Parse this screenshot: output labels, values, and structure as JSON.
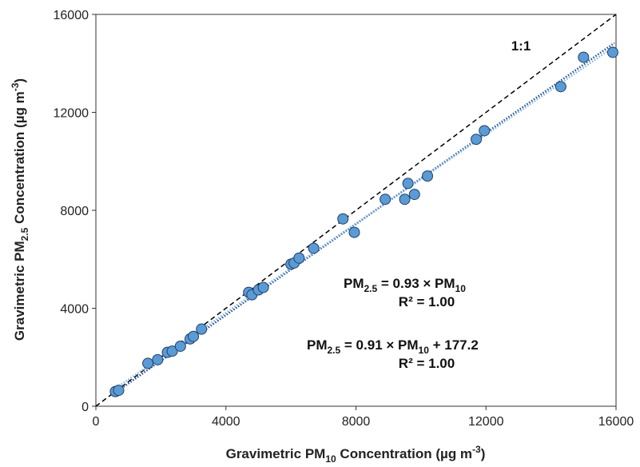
{
  "chart_data": {
    "type": "scatter",
    "xlabel": {
      "pre": "Gravimetric PM",
      "sub": "10",
      "mid": " Concentration (µg m",
      "sup": "-3",
      "post": ")"
    },
    "ylabel": {
      "pre": "Gravimetric PM",
      "sub": "2.5",
      "mid": " Concentration (µg m",
      "sup": "-3",
      "post": ")"
    },
    "xlim": [
      0,
      16000
    ],
    "ylim": [
      0,
      16000
    ],
    "xticks": [
      "0",
      "4000",
      "8000",
      "12000",
      "16000"
    ],
    "yticks": [
      "0",
      "4000",
      "8000",
      "12000",
      "16000"
    ],
    "grid": false,
    "marker_color": "#5b9bd5",
    "marker_edge": "#1f3f66",
    "series": [
      {
        "x": [
          600,
          700,
          1600,
          1900,
          2200,
          2350,
          2600,
          2900,
          3000,
          3250,
          4700,
          4800,
          5000,
          5150,
          6000,
          6100,
          6250,
          6700,
          7600,
          7950,
          8900,
          9500,
          9600,
          9800,
          10200,
          11700,
          11950,
          14300,
          15000,
          15900
        ],
        "y": [
          600,
          650,
          1750,
          1900,
          2200,
          2250,
          2450,
          2750,
          2850,
          3150,
          4650,
          4550,
          4750,
          4850,
          5800,
          5850,
          6050,
          6450,
          7650,
          7100,
          8450,
          8450,
          9100,
          8650,
          9400,
          10900,
          11250,
          13050,
          14250,
          14450
        ]
      }
    ],
    "lines": [
      {
        "kind": "identity",
        "slope": 1,
        "intercept": 0,
        "color": "#000000",
        "style": "dashed"
      },
      {
        "kind": "fit-through-origin",
        "slope": 0.93,
        "intercept": 0,
        "color": "#1f4e99",
        "style": "dotted"
      },
      {
        "kind": "fit-linear",
        "slope": 0.91,
        "intercept": 177.2,
        "color": "#7fb3e0",
        "style": "dotted"
      }
    ],
    "annotations": {
      "identity_label": "1:1",
      "eq1": {
        "lhs": "PM",
        "lhs_sub": "2.5",
        "rhs": " = 0.93 × PM",
        "rhs_sub": "10",
        "tail": ""
      },
      "r2_1": "R² = 1.00",
      "eq2": {
        "lhs": "PM",
        "lhs_sub": "2.5",
        "rhs": " =  0.91 × PM",
        "rhs_sub": "10",
        "tail": " + 177.2"
      },
      "r2_2": "R² = 1.00"
    }
  }
}
